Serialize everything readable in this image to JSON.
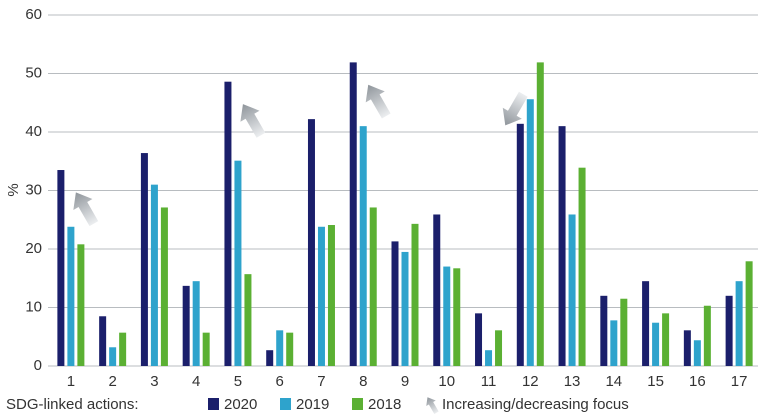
{
  "chart_data": {
    "type": "bar",
    "y_label": "%",
    "x_label": "SDG-linked actions:",
    "categories": [
      "1",
      "2",
      "3",
      "4",
      "5",
      "6",
      "7",
      "8",
      "9",
      "10",
      "11",
      "12",
      "13",
      "14",
      "15",
      "16",
      "17"
    ],
    "series": [
      {
        "name": "2020",
        "color": "#1b1f6b",
        "values": [
          33.5,
          8.5,
          36.4,
          13.7,
          48.6,
          2.7,
          42.2,
          51.9,
          21.3,
          25.9,
          9,
          41.4,
          41,
          12,
          14.5,
          6.1,
          12
        ]
      },
      {
        "name": "2019",
        "color": "#2ea3cc",
        "values": [
          23.8,
          3.2,
          31,
          14.5,
          35.1,
          6.1,
          23.8,
          41,
          19.5,
          17,
          2.7,
          45.6,
          25.9,
          7.8,
          7.4,
          4.4,
          14.5
        ]
      },
      {
        "name": "2018",
        "color": "#5bb033",
        "values": [
          20.8,
          5.7,
          27.1,
          5.7,
          15.7,
          5.7,
          24.1,
          27.1,
          24.3,
          16.7,
          6.1,
          51.9,
          33.9,
          11.5,
          9,
          10.3,
          17.9
        ]
      }
    ],
    "ylim": [
      0,
      60
    ],
    "yticks": [
      0,
      10,
      20,
      30,
      40,
      50,
      60
    ],
    "grid": true,
    "legend_position": "bottom",
    "arrow_legend": "Increasing/decreasing focus",
    "focus_arrows": [
      {
        "index": 0,
        "direction": "up"
      },
      {
        "index": 4,
        "direction": "up"
      },
      {
        "index": 7,
        "direction": "up"
      },
      {
        "index": 11,
        "direction": "down"
      }
    ]
  }
}
